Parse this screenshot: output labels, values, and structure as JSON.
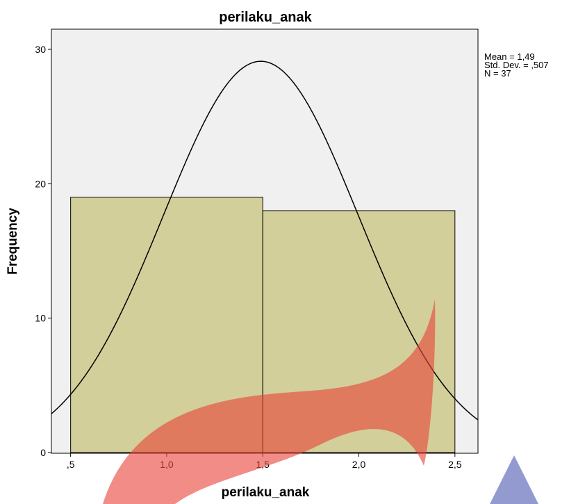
{
  "chart_data": {
    "type": "bar",
    "title": "perilaku_anak",
    "xlabel": "perilaku_anak",
    "ylabel": "Frequency",
    "bins": [
      {
        "start": 0.5,
        "end": 1.5,
        "value": 19
      },
      {
        "start": 1.5,
        "end": 2.5,
        "value": 18
      }
    ],
    "xlim": [
      0.4,
      2.62
    ],
    "ylim": [
      0,
      32
    ],
    "x_ticks": [
      0.5,
      1.0,
      1.5,
      2.0,
      2.5
    ],
    "x_tick_labels": [
      ",5",
      "1,0",
      "1,5",
      "2,0",
      "2,5"
    ],
    "y_ticks": [
      0,
      10,
      20,
      30
    ],
    "y_tick_labels": [
      "0",
      "10",
      "20",
      "30"
    ],
    "normal_curve": {
      "mean": 1.49,
      "std_dev": 0.507,
      "n": 37,
      "bin_width": 1.0
    },
    "stats": [
      "Mean = 1,49",
      "Std. Dev. = ,507",
      "N = 37"
    ],
    "grid": false,
    "legend": "none",
    "colors": {
      "bar_fill": "#d3cf9a",
      "plot_background": "#f0f0f0",
      "curve": "#000000"
    },
    "watermark": {
      "colors": [
        "#e8453c",
        "#3b47a8"
      ]
    }
  }
}
